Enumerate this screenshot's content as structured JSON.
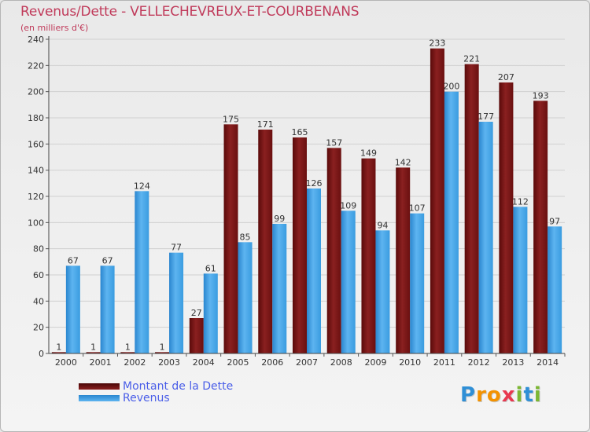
{
  "chart_data": {
    "type": "bar",
    "title": "Revenus/Dette - VELLECHEVREUX-ET-COURBENANS",
    "subtitle": "(en milliers d'€)",
    "categories": [
      "2000",
      "2001",
      "2002",
      "2003",
      "2004",
      "2005",
      "2006",
      "2007",
      "2008",
      "2009",
      "2010",
      "2011",
      "2012",
      "2013",
      "2014"
    ],
    "series": [
      {
        "name": "Montant de la Dette",
        "color": "#7a1414",
        "values": [
          1,
          1,
          1,
          1,
          27,
          175,
          171,
          165,
          157,
          149,
          142,
          233,
          221,
          207,
          193
        ]
      },
      {
        "name": "Revenus",
        "color": "#3d9fe3",
        "values": [
          67,
          67,
          124,
          77,
          61,
          85,
          99,
          126,
          109,
          94,
          107,
          200,
          177,
          112,
          97
        ]
      }
    ],
    "ylim": [
      0,
      240
    ],
    "yticks": [
      0,
      20,
      40,
      60,
      80,
      100,
      120,
      140,
      160,
      180,
      200,
      220,
      240
    ],
    "grid": true,
    "legend": "bottom-left"
  },
  "legend": {
    "items": [
      {
        "label": "Montant de la Dette",
        "color": "#7a1414"
      },
      {
        "label": "Revenus",
        "color": "#3d9fe3"
      }
    ]
  },
  "brand": {
    "letters": [
      "P",
      "r",
      "o",
      "x",
      "i",
      "t",
      "i"
    ],
    "colors": [
      "#2f8fd6",
      "#f39200",
      "#f39200",
      "#e8384f",
      "#7cb733",
      "#2f8fd6",
      "#7cb733"
    ]
  }
}
